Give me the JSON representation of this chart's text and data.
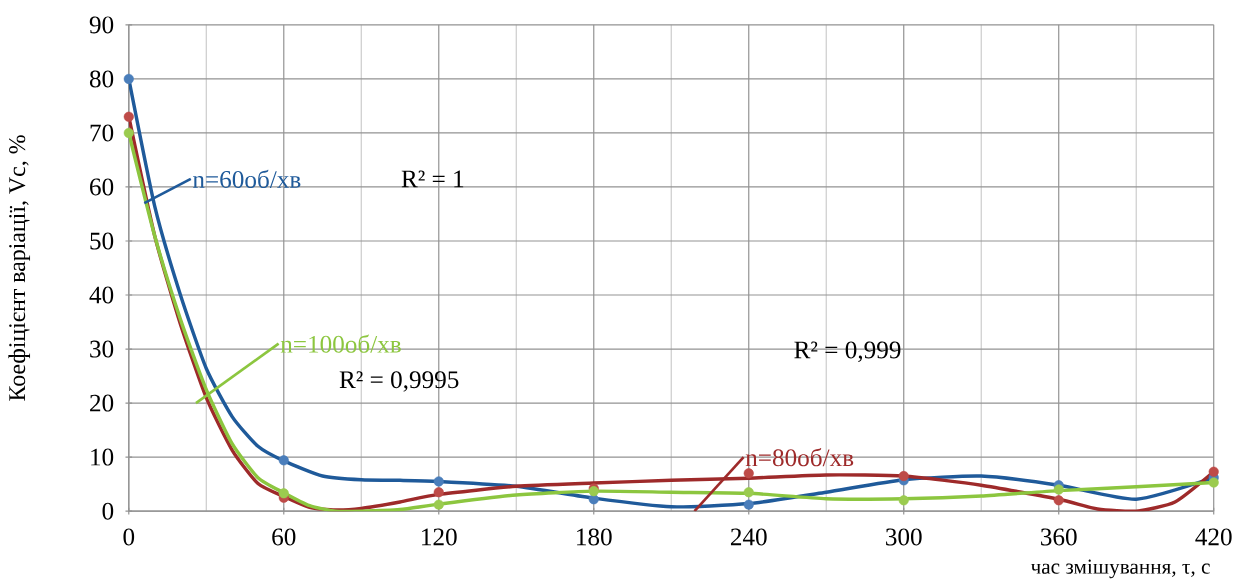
{
  "chart_data": {
    "type": "line",
    "xlabel": "час змішування, τ, с",
    "ylabel": "Коефіцієнт варіації, Vc, %",
    "x": [
      0,
      60,
      120,
      180,
      240,
      300,
      360,
      420
    ],
    "xlim": [
      0,
      420
    ],
    "xticks": [
      0,
      60,
      120,
      180,
      240,
      300,
      360,
      420
    ],
    "ylim": [
      0,
      90
    ],
    "yticks": [
      0,
      10,
      20,
      30,
      40,
      50,
      60,
      70,
      80,
      90
    ],
    "grid": true,
    "series": [
      {
        "type": "line",
        "name": "n=60об/хв",
        "color": "#1f5a9a",
        "x": [
          0,
          10,
          20,
          30,
          40,
          50,
          60,
          75,
          90,
          105,
          120,
          150,
          180,
          210,
          240,
          270,
          300,
          330,
          360,
          390,
          420
        ],
        "values": [
          80,
          56.5,
          40,
          26.4,
          17.5,
          12,
          9.3,
          6.5,
          5.8,
          5.7,
          5.5,
          4.6,
          2.4,
          0.8,
          1.4,
          3.5,
          5.8,
          6.5,
          4.8,
          2.2,
          6.2
        ]
      },
      {
        "type": "line",
        "name": "n=80об/хв",
        "color": "#9e2a2a",
        "x": [
          0,
          10,
          20,
          30,
          40,
          50,
          60,
          70,
          80,
          90,
          105,
          120,
          150,
          180,
          210,
          240,
          270,
          300,
          330,
          360,
          375,
          390,
          405,
          420
        ],
        "values": [
          73,
          51,
          34.6,
          21,
          11.3,
          5.1,
          2.7,
          0.7,
          0.2,
          0.5,
          1.7,
          3.1,
          4.6,
          5.2,
          5.7,
          6.1,
          6.7,
          6.5,
          4.8,
          2.2,
          0.4,
          0,
          1.7,
          7.3
        ]
      },
      {
        "type": "line",
        "name": "n=100об/хв",
        "color": "#8cc63f",
        "x": [
          0,
          10,
          20,
          30,
          40,
          50,
          60,
          70,
          80,
          90,
          105,
          120,
          150,
          180,
          210,
          240,
          270,
          300,
          330,
          360,
          390,
          420
        ],
        "values": [
          70,
          51,
          35.5,
          22.5,
          12.5,
          6.2,
          3.4,
          1,
          0,
          0,
          0.3,
          1.3,
          3,
          3.7,
          3.5,
          3.3,
          2.3,
          2.3,
          2.8,
          3.8,
          4.5,
          5.3
        ]
      },
      {
        "type": "scatter",
        "marker": "circle",
        "color": "#4a7ebb",
        "values": [
          80,
          9.4,
          5.5,
          2.2,
          1.2,
          5.7,
          4.8,
          6.2
        ]
      },
      {
        "type": "scatter",
        "marker": "circle",
        "color": "#be4b48",
        "values": [
          73,
          2.5,
          3.5,
          4.2,
          7.0,
          6.5,
          2.0,
          7.3
        ]
      },
      {
        "type": "scatter",
        "marker": "circle",
        "color": "#9bcb4f",
        "values": [
          70,
          3.3,
          1.2,
          3.7,
          3.5,
          2.0,
          4.0,
          5.3
        ]
      }
    ],
    "annotations": [
      "R² = 1",
      "R² = 0,9995",
      "R² = 0,999"
    ]
  }
}
